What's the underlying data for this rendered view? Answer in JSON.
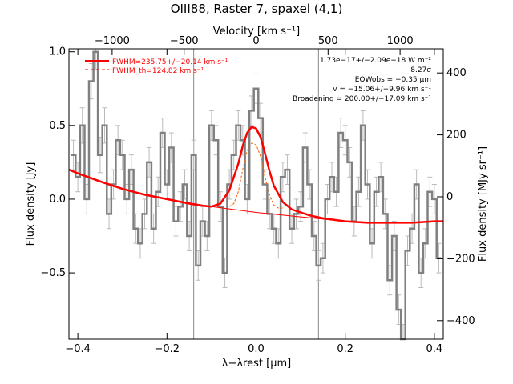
{
  "chart_data": {
    "type": "line",
    "title": "OIII88, Raster 7, spaxel (4,1)",
    "xlabel": "λ−λrest [μm]",
    "ylabel_left": "Flux density [Jy]",
    "ylabel_right": "Flux density [MJy sr⁻¹]",
    "xlabel_top": "Velocity [km s⁻¹]",
    "xlim": [
      -0.42,
      0.42
    ],
    "ylim": [
      -0.95,
      1.02
    ],
    "y2lim": [
      -460,
      478
    ],
    "vlim": [
      -1300,
      1300
    ],
    "x_ticks": [
      -0.4,
      -0.2,
      0.0,
      0.2,
      0.4
    ],
    "x_tick_labels": [
      "−0.4",
      "−0.2",
      "0.0",
      "0.2",
      "0.4"
    ],
    "y_ticks": [
      -0.5,
      0.0,
      0.5,
      1.0
    ],
    "y_tick_labels": [
      "−0.5",
      "0.0",
      "0.5",
      "1.0"
    ],
    "v_ticks": [
      -1000,
      -500,
      0,
      500,
      1000
    ],
    "v_tick_labels": [
      "−1000",
      "−500",
      "0",
      "500",
      "1000"
    ],
    "y2_ticks": [
      -400,
      -200,
      0,
      200,
      400
    ],
    "y2_tick_labels": [
      "−400",
      "−200",
      "0",
      "200",
      "400"
    ],
    "vertical_lines": [
      -0.14,
      0.0,
      0.14
    ],
    "legend": {
      "position": "top-left",
      "entries": [
        {
          "label": "FWHM=235.75+/−20.14 km s⁻¹",
          "color": "#ff0000",
          "style": "solid"
        },
        {
          "label": "FWHM_th=124.82 km s⁻¹",
          "color": "#ff0000",
          "style": "dashed"
        }
      ]
    },
    "annotations": [
      "1.73e−17+/−2.09e−18 W m⁻²",
      "8.27σ",
      "EQWobs = −0.35 μm",
      "v = −15.06+/−9.96 km s⁻¹",
      "Broadening = 200.00+/−17.09 km s⁻¹"
    ],
    "series": [
      {
        "kind": "data-step",
        "color": "#808080",
        "x": [
          -0.41,
          -0.4,
          -0.39,
          -0.38,
          -0.37,
          -0.36,
          -0.35,
          -0.34,
          -0.33,
          -0.32,
          -0.31,
          -0.3,
          -0.29,
          -0.28,
          -0.27,
          -0.26,
          -0.25,
          -0.24,
          -0.23,
          -0.22,
          -0.21,
          -0.2,
          -0.19,
          -0.18,
          -0.17,
          -0.16,
          -0.15,
          -0.14,
          -0.13,
          -0.12,
          -0.11,
          -0.1,
          -0.09,
          -0.08,
          -0.07,
          -0.06,
          -0.05,
          -0.04,
          -0.03,
          -0.02,
          -0.01,
          0.0,
          0.01,
          0.02,
          0.03,
          0.04,
          0.05,
          0.06,
          0.07,
          0.08,
          0.09,
          0.1,
          0.11,
          0.12,
          0.13,
          0.14,
          0.15,
          0.16,
          0.17,
          0.18,
          0.19,
          0.2,
          0.21,
          0.22,
          0.23,
          0.24,
          0.25,
          0.26,
          0.27,
          0.28,
          0.29,
          0.3,
          0.31,
          0.32,
          0.33,
          0.34,
          0.35,
          0.36,
          0.37,
          0.38,
          0.39,
          0.4,
          0.41
        ],
        "y": [
          0.3,
          0.15,
          0.5,
          0.0,
          0.8,
          1.0,
          0.3,
          0.5,
          -0.1,
          0.1,
          0.4,
          0.3,
          0.0,
          0.2,
          -0.2,
          -0.3,
          -0.1,
          0.25,
          -0.2,
          0.05,
          0.45,
          0.1,
          0.35,
          -0.15,
          -0.05,
          0.1,
          -0.25,
          0.3,
          -0.45,
          -0.15,
          -0.25,
          0.5,
          0.4,
          -0.05,
          -0.5,
          0.1,
          0.3,
          0.5,
          0.4,
          0.0,
          0.6,
          0.75,
          0.55,
          0.1,
          -0.1,
          -0.2,
          -0.3,
          0.15,
          0.2,
          -0.2,
          -0.1,
          -0.05,
          0.35,
          0.1,
          -0.25,
          -0.45,
          -0.4,
          0.0,
          0.15,
          0.05,
          0.45,
          0.4,
          0.25,
          -0.15,
          0.05,
          0.5,
          0.1,
          -0.3,
          0.05,
          0.15,
          -0.1,
          -0.55,
          -0.25,
          -0.75,
          -0.95,
          -0.35,
          -0.2,
          0.1,
          -0.5,
          -0.3,
          0.05,
          0.0,
          -0.4
        ],
        "err": [
          0.1,
          0.1,
          0.12,
          0.1,
          0.12,
          0.12,
          0.12,
          0.12,
          0.1,
          0.1,
          0.1,
          0.1,
          0.1,
          0.1,
          0.1,
          0.1,
          0.1,
          0.1,
          0.1,
          0.1,
          0.1,
          0.1,
          0.1,
          0.1,
          0.1,
          0.1,
          0.1,
          0.1,
          0.1,
          0.1,
          0.1,
          0.1,
          0.1,
          0.1,
          0.1,
          0.1,
          0.1,
          0.1,
          0.1,
          0.1,
          0.1,
          0.1,
          0.1,
          0.1,
          0.1,
          0.1,
          0.1,
          0.1,
          0.1,
          0.1,
          0.1,
          0.1,
          0.1,
          0.1,
          0.1,
          0.1,
          0.1,
          0.1,
          0.1,
          0.1,
          0.1,
          0.1,
          0.1,
          0.1,
          0.1,
          0.1,
          0.1,
          0.1,
          0.1,
          0.1,
          0.1,
          0.1,
          0.1,
          0.1,
          0.1,
          0.1,
          0.1,
          0.1,
          0.1,
          0.1,
          0.1,
          0.1,
          0.1
        ]
      },
      {
        "kind": "model-fit",
        "color": "#ff0000",
        "x": [
          -0.42,
          -0.4,
          -0.35,
          -0.3,
          -0.25,
          -0.2,
          -0.15,
          -0.12,
          -0.1,
          -0.08,
          -0.06,
          -0.04,
          -0.03,
          -0.02,
          -0.01,
          0.0,
          0.01,
          0.02,
          0.03,
          0.04,
          0.06,
          0.08,
          0.1,
          0.12,
          0.15,
          0.2,
          0.25,
          0.3,
          0.35,
          0.4,
          0.42
        ],
        "y": [
          0.2,
          0.175,
          0.12,
          0.07,
          0.03,
          0.0,
          -0.03,
          -0.045,
          -0.05,
          -0.03,
          0.06,
          0.24,
          0.36,
          0.45,
          0.49,
          0.48,
          0.42,
          0.31,
          0.19,
          0.09,
          -0.02,
          -0.07,
          -0.09,
          -0.11,
          -0.13,
          -0.15,
          -0.16,
          -0.16,
          -0.16,
          -0.15,
          -0.15
        ]
      },
      {
        "kind": "continuum",
        "color": "#ff0000",
        "x": [
          -0.42,
          -0.3,
          -0.2,
          -0.1,
          0.0,
          0.1,
          0.2,
          0.3,
          0.42
        ],
        "y": [
          0.2,
          0.07,
          -0.0,
          -0.05,
          -0.09,
          -0.12,
          -0.15,
          -0.16,
          -0.15
        ]
      },
      {
        "kind": "thermal-line",
        "color": "#ff6000",
        "style": "dashed",
        "x": [
          -0.06,
          -0.05,
          -0.04,
          -0.03,
          -0.02,
          -0.01,
          0.0,
          0.01,
          0.02,
          0.03,
          0.04,
          0.05,
          0.06
        ],
        "y": [
          -0.05,
          -0.03,
          0.05,
          0.2,
          0.33,
          0.38,
          0.37,
          0.29,
          0.15,
          0.03,
          -0.04,
          -0.06,
          -0.06
        ]
      }
    ]
  }
}
